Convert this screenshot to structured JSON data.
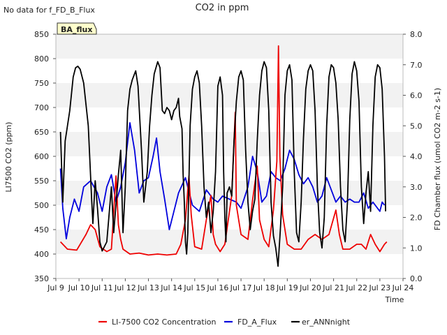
{
  "chart_data": {
    "type": "line",
    "title": "CO2 in ppm",
    "no_data_note": "No data for f_FD_B_Flux",
    "badge": "BA_flux",
    "xlabel": "Time",
    "ylabel_left": "LI7500 CO2 (ppm)",
    "ylabel_right": "FD Chamber flux (umol CO2 m-2 s-1)",
    "x_ticks": [
      "Jul 9",
      "Jul 10",
      "Jul 11",
      "Jul 12",
      "Jul 13",
      "Jul 14",
      "Jul 15",
      "Jul 16",
      "Jul 17",
      "Jul 18",
      "Jul 19",
      "Jul 20",
      "Jul 21",
      "Jul 22",
      "Jul 23",
      "Jul 24"
    ],
    "xlim": [
      9,
      24
    ],
    "ylim_left": [
      350,
      850
    ],
    "y_ticks_left": [
      "350",
      "400",
      "450",
      "500",
      "550",
      "600",
      "650",
      "700",
      "750",
      "800",
      "850"
    ],
    "ylim_right": [
      0,
      8
    ],
    "y_ticks_right": [
      "0.0",
      "1.0",
      "2.0",
      "3.0",
      "4.0",
      "5.0",
      "6.0",
      "7.0",
      "8.0"
    ],
    "legend": {
      "placement": "bottom-center"
    },
    "series": [
      {
        "name": "LI-7500 CO2 Concentration",
        "axis": "left",
        "color": "#ee0000",
        "points": [
          [
            9.2,
            425
          ],
          [
            9.5,
            410
          ],
          [
            9.9,
            408
          ],
          [
            10.3,
            440
          ],
          [
            10.5,
            460
          ],
          [
            10.7,
            450
          ],
          [
            10.9,
            415
          ],
          [
            11.2,
            405
          ],
          [
            11.4,
            410
          ],
          [
            11.6,
            560
          ],
          [
            11.7,
            460
          ],
          [
            11.8,
            430
          ],
          [
            11.9,
            410
          ],
          [
            12.2,
            400
          ],
          [
            12.6,
            402
          ],
          [
            13.0,
            398
          ],
          [
            13.4,
            400
          ],
          [
            13.8,
            398
          ],
          [
            14.2,
            400
          ],
          [
            14.4,
            420
          ],
          [
            14.6,
            470
          ],
          [
            14.75,
            560
          ],
          [
            14.85,
            480
          ],
          [
            15.0,
            415
          ],
          [
            15.3,
            410
          ],
          [
            15.5,
            470
          ],
          [
            15.7,
            520
          ],
          [
            15.8,
            440
          ],
          [
            15.9,
            420
          ],
          [
            16.1,
            405
          ],
          [
            16.3,
            420
          ],
          [
            16.6,
            520
          ],
          [
            16.75,
            690
          ],
          [
            16.8,
            500
          ],
          [
            17.0,
            440
          ],
          [
            17.3,
            430
          ],
          [
            17.5,
            510
          ],
          [
            17.7,
            580
          ],
          [
            17.8,
            470
          ],
          [
            18.0,
            430
          ],
          [
            18.2,
            415
          ],
          [
            18.4,
            490
          ],
          [
            18.55,
            590
          ],
          [
            18.62,
            826
          ],
          [
            18.68,
            600
          ],
          [
            18.8,
            480
          ],
          [
            19.0,
            420
          ],
          [
            19.3,
            410
          ],
          [
            19.6,
            410
          ],
          [
            19.9,
            430
          ],
          [
            20.2,
            440
          ],
          [
            20.5,
            430
          ],
          [
            20.8,
            440
          ],
          [
            21.1,
            490
          ],
          [
            21.25,
            440
          ],
          [
            21.4,
            410
          ],
          [
            21.7,
            410
          ],
          [
            22.0,
            420
          ],
          [
            22.2,
            420
          ],
          [
            22.4,
            410
          ],
          [
            22.6,
            440
          ],
          [
            22.8,
            420
          ],
          [
            23.0,
            405
          ],
          [
            23.2,
            420
          ],
          [
            23.3,
            425
          ]
        ]
      },
      {
        "name": "FD_A_Flux",
        "axis": "right",
        "color": "#0000dd",
        "points": [
          [
            9.2,
            3.6
          ],
          [
            9.3,
            2.3
          ],
          [
            9.45,
            1.3
          ],
          [
            9.6,
            2.0
          ],
          [
            9.8,
            2.6
          ],
          [
            10.0,
            2.2
          ],
          [
            10.2,
            3.0
          ],
          [
            10.5,
            3.2
          ],
          [
            10.8,
            2.8
          ],
          [
            11.0,
            2.2
          ],
          [
            11.2,
            3.0
          ],
          [
            11.4,
            3.4
          ],
          [
            11.6,
            2.5
          ],
          [
            11.8,
            3.0
          ],
          [
            12.0,
            3.8
          ],
          [
            12.2,
            5.1
          ],
          [
            12.4,
            4.2
          ],
          [
            12.6,
            2.8
          ],
          [
            12.8,
            3.2
          ],
          [
            13.0,
            3.3
          ],
          [
            13.2,
            4.0
          ],
          [
            13.35,
            4.6
          ],
          [
            13.5,
            3.5
          ],
          [
            13.7,
            2.6
          ],
          [
            13.9,
            1.6
          ],
          [
            14.1,
            2.2
          ],
          [
            14.3,
            2.8
          ],
          [
            14.6,
            3.3
          ],
          [
            14.9,
            2.4
          ],
          [
            15.2,
            2.2
          ],
          [
            15.5,
            2.9
          ],
          [
            15.8,
            2.6
          ],
          [
            16.0,
            2.5
          ],
          [
            16.2,
            2.7
          ],
          [
            16.5,
            2.6
          ],
          [
            16.8,
            2.5
          ],
          [
            17.0,
            2.3
          ],
          [
            17.3,
            3.0
          ],
          [
            17.5,
            4.0
          ],
          [
            17.7,
            3.5
          ],
          [
            17.9,
            2.5
          ],
          [
            18.1,
            2.7
          ],
          [
            18.3,
            3.5
          ],
          [
            18.5,
            3.3
          ],
          [
            18.7,
            3.2
          ],
          [
            18.9,
            3.6
          ],
          [
            19.1,
            4.2
          ],
          [
            19.3,
            3.9
          ],
          [
            19.5,
            3.4
          ],
          [
            19.7,
            3.1
          ],
          [
            19.9,
            3.3
          ],
          [
            20.1,
            3.0
          ],
          [
            20.3,
            2.5
          ],
          [
            20.5,
            2.7
          ],
          [
            20.7,
            3.3
          ],
          [
            20.9,
            2.9
          ],
          [
            21.1,
            2.5
          ],
          [
            21.3,
            2.7
          ],
          [
            21.5,
            2.5
          ],
          [
            21.7,
            2.6
          ],
          [
            21.9,
            2.5
          ],
          [
            22.1,
            2.5
          ],
          [
            22.3,
            2.8
          ],
          [
            22.5,
            2.3
          ],
          [
            22.7,
            2.5
          ],
          [
            22.9,
            2.3
          ],
          [
            23.0,
            2.2
          ],
          [
            23.1,
            2.5
          ],
          [
            23.2,
            2.4
          ]
        ]
      },
      {
        "name": "er_ANNnight",
        "axis": "right",
        "color": "#000000",
        "points": [
          [
            9.2,
            4.8
          ],
          [
            9.3,
            2.5
          ],
          [
            9.4,
            4.5
          ],
          [
            9.6,
            5.5
          ],
          [
            9.75,
            6.6
          ],
          [
            9.85,
            6.9
          ],
          [
            9.95,
            6.95
          ],
          [
            10.05,
            6.85
          ],
          [
            10.2,
            6.4
          ],
          [
            10.4,
            5.0
          ],
          [
            10.55,
            2.5
          ],
          [
            10.6,
            1.8
          ],
          [
            10.7,
            3.2
          ],
          [
            10.8,
            2.3
          ],
          [
            10.9,
            1.2
          ],
          [
            11.0,
            0.9
          ],
          [
            11.2,
            1.2
          ],
          [
            11.4,
            3.0
          ],
          [
            11.5,
            1.5
          ],
          [
            11.7,
            3.4
          ],
          [
            11.8,
            4.2
          ],
          [
            11.9,
            1.5
          ],
          [
            12.0,
            3.0
          ],
          [
            12.1,
            5.5
          ],
          [
            12.2,
            6.2
          ],
          [
            12.3,
            6.5
          ],
          [
            12.45,
            6.8
          ],
          [
            12.55,
            6.3
          ],
          [
            12.7,
            4.2
          ],
          [
            12.8,
            2.5
          ],
          [
            12.95,
            3.5
          ],
          [
            13.05,
            5.0
          ],
          [
            13.15,
            6.0
          ],
          [
            13.25,
            6.7
          ],
          [
            13.4,
            7.1
          ],
          [
            13.5,
            6.9
          ],
          [
            13.6,
            5.5
          ],
          [
            13.7,
            5.4
          ],
          [
            13.8,
            5.6
          ],
          [
            13.9,
            5.5
          ],
          [
            14.0,
            5.2
          ],
          [
            14.1,
            5.5
          ],
          [
            14.2,
            5.6
          ],
          [
            14.3,
            5.9
          ],
          [
            14.35,
            5.3
          ],
          [
            14.45,
            4.9
          ],
          [
            14.5,
            3.4
          ],
          [
            14.55,
            2.5
          ],
          [
            14.6,
            1.2
          ],
          [
            14.65,
            0.8
          ],
          [
            14.7,
            1.5
          ],
          [
            14.8,
            5.0
          ],
          [
            14.9,
            6.2
          ],
          [
            15.0,
            6.6
          ],
          [
            15.1,
            6.8
          ],
          [
            15.2,
            6.4
          ],
          [
            15.3,
            5.0
          ],
          [
            15.4,
            3.0
          ],
          [
            15.5,
            2.0
          ],
          [
            15.6,
            2.5
          ],
          [
            15.7,
            1.5
          ],
          [
            15.8,
            2.2
          ],
          [
            15.9,
            3.5
          ],
          [
            16.0,
            6.3
          ],
          [
            16.1,
            6.6
          ],
          [
            16.2,
            6.0
          ],
          [
            16.25,
            3.5
          ],
          [
            16.3,
            2.0
          ],
          [
            16.35,
            1.2
          ],
          [
            16.4,
            2.8
          ],
          [
            16.5,
            3.0
          ],
          [
            16.6,
            2.7
          ],
          [
            16.7,
            4.5
          ],
          [
            16.8,
            5.8
          ],
          [
            16.9,
            6.6
          ],
          [
            17.0,
            6.8
          ],
          [
            17.1,
            6.5
          ],
          [
            17.2,
            4.2
          ],
          [
            17.3,
            2.5
          ],
          [
            17.4,
            1.6
          ],
          [
            17.5,
            2.2
          ],
          [
            17.6,
            2.6
          ],
          [
            17.7,
            4.5
          ],
          [
            17.8,
            6.0
          ],
          [
            17.9,
            6.8
          ],
          [
            18.0,
            7.1
          ],
          [
            18.1,
            6.9
          ],
          [
            18.2,
            5.5
          ],
          [
            18.3,
            2.5
          ],
          [
            18.4,
            1.4
          ],
          [
            18.5,
            1.0
          ],
          [
            18.6,
            0.4
          ],
          [
            18.7,
            1.6
          ],
          [
            18.8,
            3.0
          ],
          [
            18.9,
            6.0
          ],
          [
            19.0,
            6.8
          ],
          [
            19.1,
            7.0
          ],
          [
            19.2,
            6.5
          ],
          [
            19.3,
            3.5
          ],
          [
            19.4,
            1.5
          ],
          [
            19.5,
            1.2
          ],
          [
            19.6,
            2.5
          ],
          [
            19.7,
            4.6
          ],
          [
            19.8,
            6.2
          ],
          [
            19.9,
            6.8
          ],
          [
            20.0,
            7.0
          ],
          [
            20.1,
            6.8
          ],
          [
            20.2,
            5.5
          ],
          [
            20.3,
            3.0
          ],
          [
            20.4,
            1.5
          ],
          [
            20.5,
            1.0
          ],
          [
            20.6,
            2.0
          ],
          [
            20.7,
            5.0
          ],
          [
            20.8,
            6.6
          ],
          [
            20.9,
            7.0
          ],
          [
            21.0,
            6.9
          ],
          [
            21.1,
            6.4
          ],
          [
            21.2,
            5.2
          ],
          [
            21.3,
            3.0
          ],
          [
            21.4,
            1.6
          ],
          [
            21.5,
            1.2
          ],
          [
            21.6,
            2.5
          ],
          [
            21.7,
            5.2
          ],
          [
            21.8,
            6.7
          ],
          [
            21.9,
            7.1
          ],
          [
            22.0,
            6.8
          ],
          [
            22.1,
            5.8
          ],
          [
            22.2,
            3.0
          ],
          [
            22.3,
            1.8
          ],
          [
            22.4,
            2.8
          ],
          [
            22.5,
            3.5
          ],
          [
            22.6,
            2.2
          ],
          [
            22.7,
            5.0
          ],
          [
            22.8,
            6.6
          ],
          [
            22.9,
            7.0
          ],
          [
            23.0,
            6.9
          ],
          [
            23.1,
            6.2
          ],
          [
            23.2,
            4.0
          ],
          [
            23.25,
            2.2
          ]
        ]
      }
    ]
  }
}
